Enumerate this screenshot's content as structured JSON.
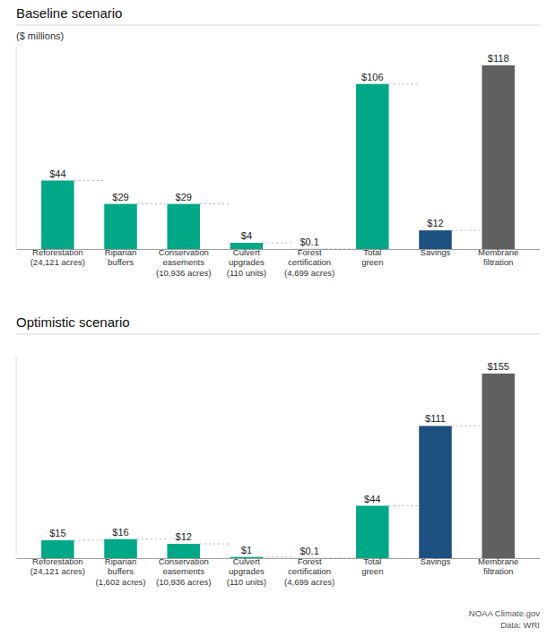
{
  "chart_data": [
    {
      "type": "bar",
      "title": "Baseline scenario",
      "ylabel": "($ millions)",
      "categories": [
        "Reforestation\n(24,121 acres)",
        "Riparian\nbuffers",
        "Conservation\neasements\n(10,936 acres)",
        "Culvert\nupgrades\n(110 units)",
        "Forest\ncertification\n(4,699 acres)",
        "Total\ngreen",
        "Savings",
        "Membrane\nfiltration"
      ],
      "values": [
        44,
        29,
        29,
        4,
        0.1,
        106,
        12,
        118
      ],
      "value_labels": [
        "$44",
        "$29",
        "$29",
        "$4",
        "$0.1",
        "$106",
        "$12",
        "$118"
      ],
      "colors": [
        "#00a887",
        "#00a887",
        "#00a887",
        "#00a887",
        "#00a887",
        "#00a887",
        "#1c5080",
        "#606060"
      ],
      "ylim": [
        0,
        130
      ],
      "data_labels": true,
      "tick_labels": "x",
      "grid": false
    },
    {
      "type": "bar",
      "title": "Optimistic scenario",
      "categories": [
        "Reforestation\n(24,121 acres)",
        "Riparian\nbuffers\n(1,602 acres)",
        "Conservation\neasements\n(10,936 acres)",
        "Culvert\nupgrades\n(110 units)",
        "Forest\ncertification\n(4,699 acres)",
        "Total\ngreen",
        "Savings",
        "Membrane\nfiltration"
      ],
      "values": [
        15,
        16,
        12,
        1,
        0.1,
        44,
        111,
        155
      ],
      "value_labels": [
        "$15",
        "$16",
        "$12",
        "$1",
        "$0.1",
        "$44",
        "$111",
        "$155"
      ],
      "colors": [
        "#00a887",
        "#00a887",
        "#00a887",
        "#00a887",
        "#00a887",
        "#00a887",
        "#1c5080",
        "#606060"
      ],
      "ylim": [
        0,
        170
      ],
      "data_labels": true,
      "tick_labels": "x",
      "grid": false,
      "annotations": [
        "NOAA Climate.gov\nData: WRI"
      ]
    }
  ]
}
